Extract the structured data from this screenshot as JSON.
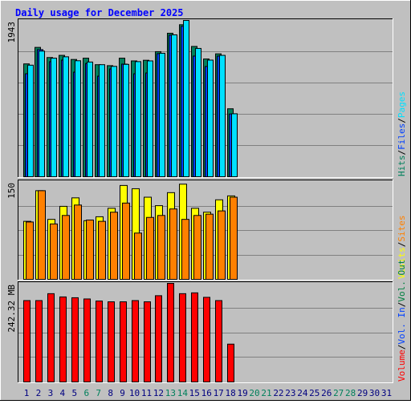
{
  "title": "Daily usage for December 2025",
  "colors": {
    "hits": "#00805c",
    "files": "#0040ff",
    "pages": "#00e0ff",
    "visits": "#ffff00",
    "sites": "#ff8000",
    "kbytes_out": "#008040",
    "kbytes_in": "#0040ff",
    "volume": "#ff0000",
    "weekend_label": "#00805c",
    "weekday_label": "#000080",
    "title": "#0000ff",
    "panel_bg": "#c0c0c0"
  },
  "chart_data": [
    {
      "type": "bar",
      "panel": "hits-files-pages",
      "ylabel_max": "1943",
      "legend": [
        "Hits",
        "Files",
        "Pages"
      ],
      "legend_separator": "/",
      "categories": [
        "1",
        "2",
        "3",
        "4",
        "5",
        "6",
        "7",
        "8",
        "9",
        "10",
        "11",
        "12",
        "13",
        "14",
        "15",
        "16",
        "17",
        "18",
        "19",
        "20",
        "21",
        "22",
        "23",
        "24",
        "25",
        "26",
        "27",
        "28",
        "29",
        "30",
        "31"
      ],
      "ylim": [
        0,
        1943
      ],
      "series": [
        {
          "name": "Hits",
          "values": [
            1403,
            1608,
            1482,
            1509,
            1458,
            1474,
            1393,
            1381,
            1474,
            1440,
            1448,
            1555,
            1784,
            1890,
            1620,
            1464,
            1528,
            845,
            0,
            0,
            0,
            0,
            0,
            0,
            0,
            0,
            0,
            0,
            0,
            0,
            0
          ]
        },
        {
          "name": "Files",
          "values": [
            1280,
            1580,
            1430,
            1450,
            1300,
            1408,
            1250,
            1340,
            1400,
            1280,
            1290,
            1530,
            1760,
            1870,
            1500,
            1370,
            1500,
            780,
            0,
            0,
            0,
            0,
            0,
            0,
            0,
            0,
            0,
            0,
            0,
            0,
            0
          ]
        },
        {
          "name": "Pages",
          "values": [
            1387,
            1562,
            1474,
            1491,
            1442,
            1426,
            1393,
            1372,
            1397,
            1431,
            1440,
            1535,
            1764,
            1943,
            1595,
            1450,
            1509,
            783,
            0,
            0,
            0,
            0,
            0,
            0,
            0,
            0,
            0,
            0,
            0,
            0,
            0
          ]
        }
      ]
    },
    {
      "type": "bar",
      "panel": "visits-sites",
      "ylabel_max": "150",
      "legend": [
        "Visits",
        "Sites"
      ],
      "legend_separator": "/",
      "categories": [
        "1",
        "2",
        "3",
        "4",
        "5",
        "6",
        "7",
        "8",
        "9",
        "10",
        "11",
        "12",
        "13",
        "14",
        "15",
        "16",
        "17",
        "18",
        "19",
        "20",
        "21",
        "22",
        "23",
        "24",
        "25",
        "26",
        "27",
        "28",
        "29",
        "30",
        "31"
      ],
      "ylim": [
        0,
        150
      ],
      "series": [
        {
          "name": "Visits",
          "values": [
            89,
            136,
            92,
            112,
            125,
            90,
            96,
            109,
            144,
            139,
            126,
            113,
            133,
            146,
            109,
            103,
            122,
            128,
            0,
            0,
            0,
            0,
            0,
            0,
            0,
            0,
            0,
            0,
            0,
            0,
            0
          ]
        },
        {
          "name": "Sites",
          "values": [
            88,
            136,
            85,
            98,
            114,
            91,
            89,
            103,
            117,
            71,
            95,
            98,
            108,
            92,
            98,
            100,
            105,
            126,
            0,
            0,
            0,
            0,
            0,
            0,
            0,
            0,
            0,
            0,
            0,
            0,
            0
          ]
        }
      ]
    },
    {
      "type": "bar",
      "panel": "volume",
      "ylabel_max": "242.32 MB",
      "legend": [
        "Volume",
        "Vol. In",
        "Vol. Out"
      ],
      "legend_separator": "/",
      "categories": [
        "1",
        "2",
        "3",
        "4",
        "5",
        "6",
        "7",
        "8",
        "9",
        "10",
        "11",
        "12",
        "13",
        "14",
        "15",
        "16",
        "17",
        "18",
        "19",
        "20",
        "21",
        "22",
        "23",
        "24",
        "25",
        "26",
        "27",
        "28",
        "29",
        "30",
        "31"
      ],
      "ylim": [
        0,
        242.32
      ],
      "series": [
        {
          "name": "Volume",
          "values": [
            200,
            200,
            217,
            209,
            207,
            204,
            199,
            197,
            197,
            200,
            197,
            212,
            242.32,
            217,
            219,
            208,
            200,
            93,
            0,
            0,
            0,
            0,
            0,
            0,
            0,
            0,
            0,
            0,
            0,
            0,
            0
          ]
        }
      ]
    }
  ],
  "x_labels": [
    "1",
    "2",
    "3",
    "4",
    "5",
    "6",
    "7",
    "8",
    "9",
    "10",
    "11",
    "12",
    "13",
    "14",
    "15",
    "16",
    "17",
    "18",
    "19",
    "20",
    "21",
    "22",
    "23",
    "24",
    "25",
    "26",
    "27",
    "28",
    "29",
    "30",
    "31"
  ],
  "weekend_days": [
    6,
    7,
    13,
    14,
    20,
    21,
    27,
    28
  ]
}
